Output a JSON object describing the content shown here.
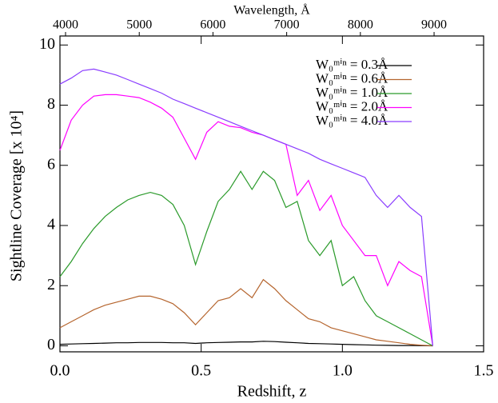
{
  "chart_data": {
    "type": "line",
    "xlabel": "Redshift, z",
    "ylabel": "Sightline Coverage [x 10⁴]",
    "x2label": "Wavelength, Å",
    "xlim": [
      0,
      1.5
    ],
    "xticks": [
      {
        "value": 0,
        "label": "0.0"
      },
      0.5,
      {
        "value": 1,
        "label": "1.0"
      },
      1.5
    ],
    "ylim": [
      -0.2,
      10.3
    ],
    "yticks": [
      0,
      2,
      4,
      6,
      8,
      10
    ],
    "x2lim": [
      3924,
      9672
    ],
    "x2ticks": [
      4000,
      5000,
      6000,
      7000,
      8000,
      9000
    ],
    "legend": "top-right",
    "x": [
      0,
      0.04,
      0.08,
      0.12,
      0.16,
      0.2,
      0.24,
      0.28,
      0.32,
      0.36,
      0.4,
      0.44,
      0.48,
      0.52,
      0.56,
      0.6,
      0.64,
      0.68,
      0.72,
      0.76,
      0.8,
      0.84,
      0.88,
      0.92,
      0.96,
      1.0,
      1.04,
      1.08,
      1.12,
      1.16,
      1.2,
      1.24,
      1.28,
      1.32
    ],
    "series": [
      {
        "name": "W₀ᵐⁱⁿ = 0.3Å",
        "color": "#000000",
        "values": [
          0.05,
          0.06,
          0.07,
          0.08,
          0.09,
          0.1,
          0.1,
          0.11,
          0.11,
          0.11,
          0.1,
          0.1,
          0.08,
          0.1,
          0.11,
          0.12,
          0.13,
          0.13,
          0.15,
          0.14,
          0.12,
          0.1,
          0.08,
          0.07,
          0.06,
          0.05,
          0.04,
          0.03,
          0.02,
          0.015,
          0.01,
          0.01,
          0.005,
          0
        ]
      },
      {
        "name": "W₀ᵐⁱⁿ = 0.6Å",
        "color": "#b5652e",
        "values": [
          0.6,
          0.8,
          1.0,
          1.2,
          1.35,
          1.45,
          1.55,
          1.65,
          1.65,
          1.55,
          1.4,
          1.1,
          0.7,
          1.1,
          1.5,
          1.6,
          1.9,
          1.6,
          2.2,
          1.9,
          1.5,
          1.2,
          0.9,
          0.8,
          0.6,
          0.5,
          0.4,
          0.3,
          0.2,
          0.15,
          0.1,
          0.05,
          0.02,
          0
        ]
      },
      {
        "name": "W₀ᵐⁱⁿ = 1.0Å",
        "color": "#2a9a2a",
        "values": [
          2.3,
          2.8,
          3.4,
          3.9,
          4.3,
          4.6,
          4.85,
          5.0,
          5.1,
          5.0,
          4.7,
          4.0,
          2.7,
          3.8,
          4.8,
          5.2,
          5.8,
          5.2,
          5.8,
          5.5,
          4.6,
          4.8,
          3.5,
          3.0,
          3.5,
          2.0,
          2.3,
          1.5,
          1.0,
          0.8,
          0.6,
          0.4,
          0.2,
          0
        ]
      },
      {
        "name": "W₀ᵐⁱⁿ = 2.0Å",
        "color": "#ff00ff",
        "values": [
          6.5,
          7.5,
          8.0,
          8.3,
          8.35,
          8.35,
          8.3,
          8.25,
          8.1,
          7.9,
          7.6,
          6.9,
          6.2,
          7.1,
          7.45,
          7.3,
          7.25,
          7.1,
          7.0,
          6.85,
          6.7,
          5.0,
          5.5,
          4.5,
          5.0,
          4.0,
          3.5,
          3.0,
          3.0,
          2.0,
          2.8,
          2.5,
          2.3,
          0
        ]
      },
      {
        "name": "W₀ᵐⁱⁿ = 4.0Å",
        "color": "#8a3cff",
        "values": [
          8.7,
          8.9,
          9.15,
          9.2,
          9.1,
          9.0,
          8.85,
          8.7,
          8.55,
          8.4,
          8.2,
          8.05,
          7.9,
          7.75,
          7.6,
          7.45,
          7.3,
          7.15,
          7.0,
          6.85,
          6.7,
          6.55,
          6.4,
          6.2,
          6.05,
          5.9,
          5.75,
          5.6,
          5.0,
          4.6,
          5.0,
          4.6,
          4.3,
          0
        ]
      }
    ]
  }
}
